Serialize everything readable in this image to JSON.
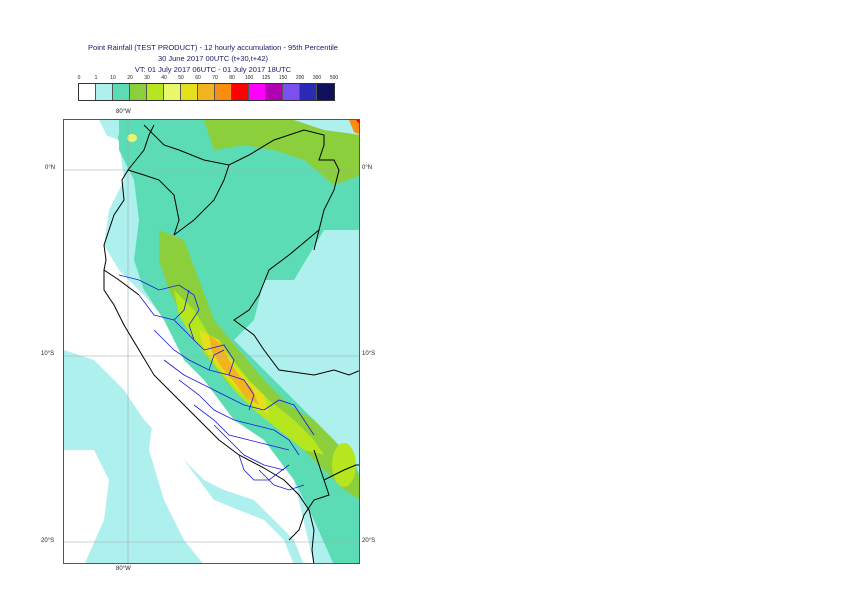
{
  "title": {
    "line1": "Point Rainfall (TEST PRODUCT) - 12 hourly accumulation - 95th Percentile",
    "line2": "30 June 2017 00UTC (t+30,t+42)",
    "line3": "VT: 01 July 2017 06UTC - 01 July 2017 18UTC"
  },
  "legend": {
    "thresholds": [
      "0",
      "1",
      "10",
      "20",
      "30",
      "40",
      "50",
      "60",
      "70",
      "80",
      "100",
      "125",
      "150",
      "200",
      "300",
      "500"
    ],
    "colors": [
      "#ffffff",
      "#aef0ee",
      "#5cdcb4",
      "#8ccf3c",
      "#b6e61e",
      "#e8f86a",
      "#e6df1c",
      "#f2b41e",
      "#fa8c10",
      "#ff0000",
      "#ff00ff",
      "#b400b4",
      "#7a50f0",
      "#2a2ab4",
      "#101060"
    ]
  },
  "map": {
    "lat_labels": [
      {
        "text": "0°N",
        "side": "left"
      },
      {
        "text": "0°N",
        "side": "right"
      },
      {
        "text": "10°S",
        "side": "left"
      },
      {
        "text": "10°S",
        "side": "right"
      },
      {
        "text": "20°S",
        "side": "left"
      },
      {
        "text": "20°S",
        "side": "right"
      }
    ],
    "lon_labels": [
      {
        "text": "80°W",
        "pos": "top"
      },
      {
        "text": "80°W",
        "pos": "bottom"
      }
    ]
  }
}
